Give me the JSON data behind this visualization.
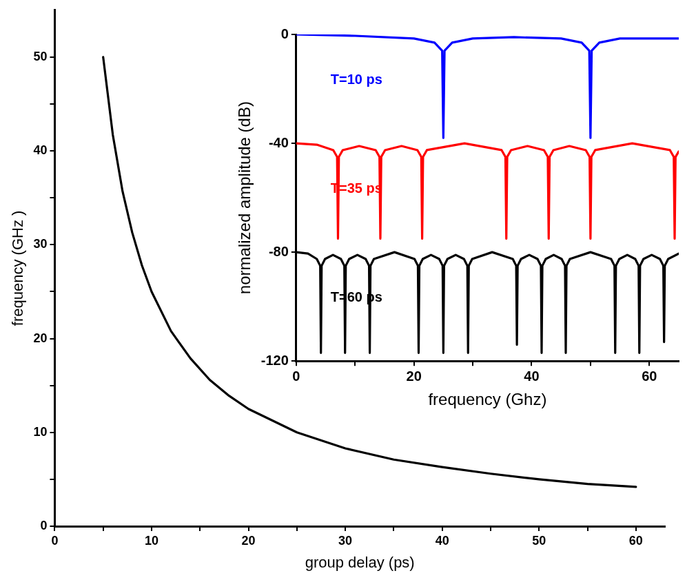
{
  "chart_data": [
    {
      "type": "line",
      "xlabel": "group delay (ps)",
      "ylabel": "frequency (GHz )",
      "xlim": [
        0,
        63
      ],
      "ylim": [
        0,
        55
      ],
      "xticks": [
        0,
        {
          "value": 5,
          "label": null
        },
        10,
        {
          "value": 15,
          "label": null
        },
        20,
        {
          "value": 25,
          "label": null
        },
        30,
        {
          "value": 35,
          "label": null
        },
        40,
        {
          "value": 45,
          "label": null
        },
        50,
        {
          "value": 55,
          "label": null
        },
        60
      ],
      "yticks": [
        0,
        {
          "value": 5,
          "label": null
        },
        10,
        {
          "value": 15,
          "label": null
        },
        20,
        {
          "value": 25,
          "label": null
        },
        30,
        {
          "value": 35,
          "label": null
        },
        40,
        {
          "value": 45,
          "label": null
        },
        50
      ],
      "legend": false,
      "marker": "none",
      "line_style": "solid",
      "series": [
        {
          "color": "#000000",
          "x": [
            5,
            6,
            7,
            8,
            9,
            10,
            12,
            14,
            16,
            18,
            20,
            25,
            30,
            35,
            40,
            45,
            50,
            55,
            60
          ],
          "values": [
            50,
            41.7,
            35.7,
            31.3,
            27.8,
            25,
            20.8,
            17.9,
            15.6,
            13.9,
            12.5,
            10,
            8.3,
            7.1,
            6.3,
            5.6,
            5,
            4.5,
            4.2
          ]
        }
      ]
    },
    {
      "type": "line",
      "xlabel": "frequency (Ghz)",
      "ylabel": "normalized amplitude (dB)",
      "xlim": [
        0,
        65
      ],
      "ylim": [
        -120,
        0
      ],
      "xticks": [
        0,
        {
          "value": 10,
          "label": null
        },
        20,
        {
          "value": 30,
          "label": null
        },
        40,
        {
          "value": 50,
          "label": null
        },
        60
      ],
      "yticks": [
        -120,
        -80,
        -40,
        0
      ],
      "legend": false,
      "marker": "none",
      "line_style": "solid",
      "series": [
        {
          "name": "T=10 ps",
          "color": "#0000ff",
          "x": [
            0,
            10,
            20,
            23.5,
            24.8,
            25,
            25.2,
            26.5,
            30,
            37,
            45,
            48.5,
            49.8,
            50,
            50.2,
            51.5,
            55,
            65
          ],
          "values": [
            0,
            -0.5,
            -1.5,
            -3,
            -6,
            -38,
            -6,
            -3,
            -1.5,
            -1,
            -1.5,
            -3,
            -6,
            -38,
            -6,
            -3,
            -1.5,
            -1.5
          ]
        },
        {
          "name": "T=35 ps",
          "color": "#ff0000",
          "x": [
            0,
            3.5,
            6.3,
            6.95,
            7.1,
            7.25,
            7.9,
            10.7,
            13.5,
            14.15,
            14.3,
            14.45,
            15.1,
            17.9,
            20.6,
            21.25,
            21.4,
            21.55,
            22.2,
            28.6,
            34.9,
            35.55,
            35.7,
            35.85,
            36.5,
            39.3,
            42.1,
            42.75,
            42.9,
            43.05,
            43.7,
            46.4,
            49.2,
            49.85,
            50,
            50.15,
            50.8,
            57.1,
            63.5,
            64.15,
            64.3,
            64.45,
            65
          ],
          "values": [
            -40,
            -40.5,
            -42.5,
            -45,
            -75,
            -45,
            -42.5,
            -41,
            -42.5,
            -45,
            -75,
            -45,
            -42.5,
            -41,
            -42.5,
            -45,
            -75,
            -45,
            -42.5,
            -40,
            -42.5,
            -45,
            -75,
            -45,
            -42.5,
            -41,
            -42.5,
            -45,
            -75,
            -45,
            -42.5,
            -41,
            -42.5,
            -45,
            -75,
            -45,
            -42.5,
            -40,
            -42.5,
            -45,
            -75,
            -45,
            -43
          ]
        },
        {
          "name": "T=60 ps",
          "color": "#000000",
          "x": [
            0,
            2,
            3.5,
            4.08,
            4.2,
            4.32,
            4.9,
            6.25,
            7.6,
            8.18,
            8.3,
            8.42,
            9.0,
            10.4,
            11.8,
            12.38,
            12.5,
            12.62,
            13.2,
            16.7,
            20.1,
            20.68,
            20.8,
            20.92,
            21.5,
            22.9,
            24.3,
            24.88,
            25,
            25.12,
            25.7,
            27.1,
            28.5,
            29.08,
            29.2,
            29.32,
            29.9,
            33.3,
            36.8,
            37.38,
            37.5,
            37.62,
            38.2,
            39.6,
            41.0,
            41.58,
            41.7,
            41.82,
            42.4,
            43.75,
            45.1,
            45.68,
            45.8,
            45.92,
            46.5,
            50,
            53.5,
            54.08,
            54.2,
            54.32,
            54.9,
            56.25,
            57.6,
            58.18,
            58.3,
            58.42,
            59.0,
            60.4,
            61.8,
            62.38,
            62.5,
            62.62,
            63.2,
            65
          ],
          "values": [
            -80,
            -80.5,
            -82.5,
            -85,
            -117,
            -85,
            -82.5,
            -81,
            -82.5,
            -85,
            -117,
            -85,
            -82.5,
            -81,
            -82.5,
            -85,
            -117,
            -85,
            -82.5,
            -80,
            -82.5,
            -85,
            -117,
            -85,
            -82.5,
            -81,
            -82.5,
            -85,
            -117,
            -85,
            -82.5,
            -81,
            -82.5,
            -85,
            -117,
            -85,
            -82.5,
            -80,
            -82.5,
            -85,
            -114,
            -85,
            -82.5,
            -81,
            -82.5,
            -85,
            -117,
            -85,
            -82.5,
            -81,
            -82.5,
            -85,
            -117,
            -85,
            -82.5,
            -80,
            -82.5,
            -85,
            -117,
            -85,
            -82.5,
            -81,
            -82.5,
            -85,
            -117,
            -85,
            -82.5,
            -81,
            -82.5,
            -85,
            -113,
            -85,
            -82.5,
            -80.5
          ]
        }
      ]
    }
  ]
}
